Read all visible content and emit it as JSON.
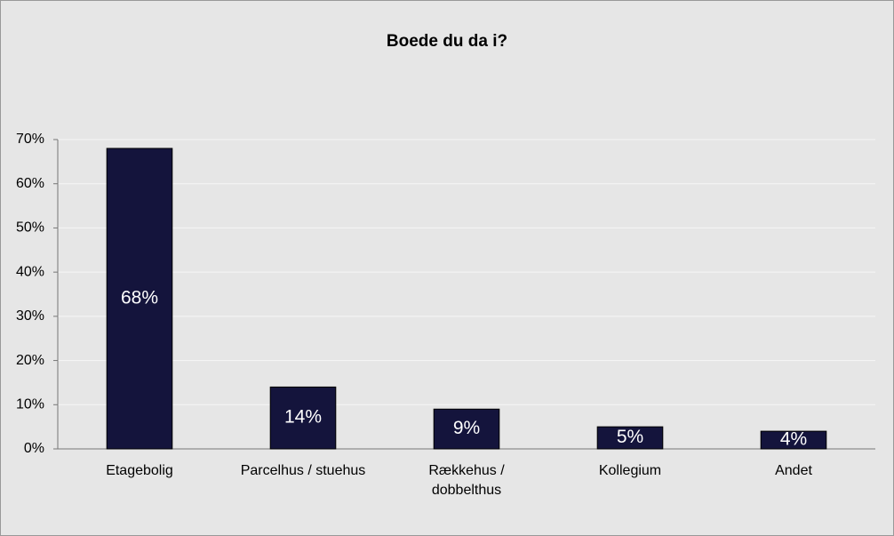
{
  "chart_data": {
    "type": "bar",
    "title": "Boede du da i?",
    "categories": [
      "Etagebolig",
      "Parcelhus / stuehus",
      "Rækkehus / dobbelthus",
      "Kollegium",
      "Andet"
    ],
    "values": [
      68,
      14,
      9,
      5,
      4
    ],
    "value_labels": [
      "68%",
      "14%",
      "9%",
      "5%",
      "4%"
    ],
    "color": "#14143c",
    "ylim": [
      0,
      70
    ],
    "yticks": [
      {
        "value": 0,
        "label": "0%"
      },
      {
        "value": 10,
        "label": "10%"
      },
      {
        "value": 20,
        "label": "20%"
      },
      {
        "value": 30,
        "label": "30%"
      },
      {
        "value": 40,
        "label": "40%"
      },
      {
        "value": 50,
        "label": "50%"
      },
      {
        "value": 60,
        "label": "60%"
      },
      {
        "value": 70,
        "label": "70%"
      }
    ],
    "grid": true
  }
}
